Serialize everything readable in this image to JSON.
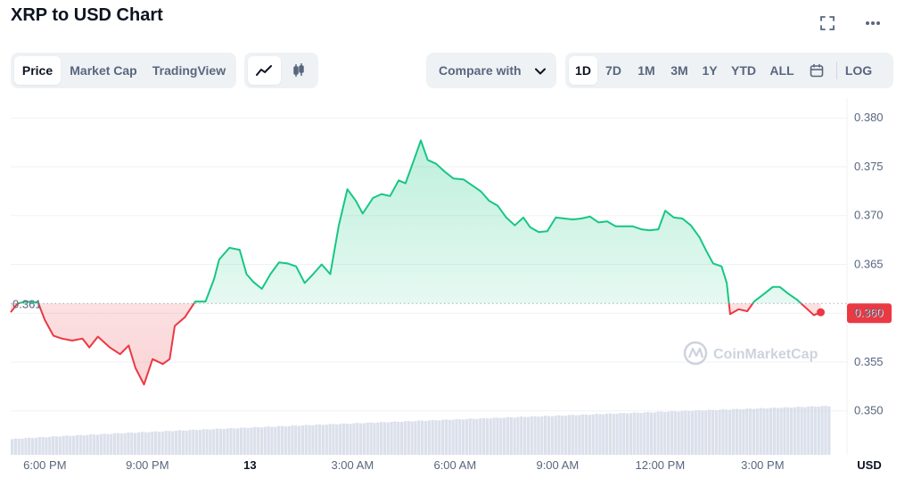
{
  "header": {
    "title": "XRP to USD Chart"
  },
  "tabs": [
    {
      "label": "Price",
      "active": true
    },
    {
      "label": "Market Cap",
      "active": false
    },
    {
      "label": "TradingView",
      "active": false
    }
  ],
  "chart_type_toggle": {
    "icons": [
      "line-chart-icon",
      "candlestick-icon"
    ],
    "active": "line-chart-icon"
  },
  "compare": {
    "label": "Compare with"
  },
  "ranges": [
    {
      "label": "1D",
      "active": true
    },
    {
      "label": "7D",
      "active": false
    },
    {
      "label": "1M",
      "active": false
    },
    {
      "label": "3M",
      "active": false
    },
    {
      "label": "1Y",
      "active": false
    },
    {
      "label": "YTD",
      "active": false
    },
    {
      "label": "ALL",
      "active": false
    }
  ],
  "log_label": "LOG",
  "watermark": "CoinMarketCap",
  "colors": {
    "up": "#16c784",
    "down": "#ea3943",
    "volume": "#cfd6e4",
    "grid": "#eff2f5"
  },
  "chart_data": {
    "type": "line",
    "currency": "USD",
    "x_unit": "hours since 17:00",
    "xticks": [
      {
        "x": 1,
        "label": "6:00 PM",
        "bold": false
      },
      {
        "x": 4,
        "label": "9:00 PM",
        "bold": false
      },
      {
        "x": 7,
        "label": "13",
        "bold": true
      },
      {
        "x": 10,
        "label": "3:00 AM",
        "bold": false
      },
      {
        "x": 13,
        "label": "6:00 AM",
        "bold": false
      },
      {
        "x": 16,
        "label": "9:00 AM",
        "bold": false
      },
      {
        "x": 19,
        "label": "12:00 PM",
        "bold": false
      },
      {
        "x": 22,
        "label": "3:00 PM",
        "bold": false
      }
    ],
    "yticks": [
      0.35,
      0.355,
      0.36,
      0.365,
      0.37,
      0.375,
      0.38
    ],
    "ylim": [
      0.3455,
      0.3813
    ],
    "xlim": [
      0.0,
      24.0
    ],
    "reference_price": 0.361,
    "reference_label": "0.361",
    "current_price": 0.36,
    "current_label": "0.360",
    "price": [
      [
        0.0,
        0.3601
      ],
      [
        0.2,
        0.361
      ],
      [
        0.45,
        0.3612
      ],
      [
        0.8,
        0.3611
      ],
      [
        1.0,
        0.3593
      ],
      [
        1.25,
        0.3577
      ],
      [
        1.5,
        0.3574
      ],
      [
        1.8,
        0.3572
      ],
      [
        2.1,
        0.3574
      ],
      [
        2.3,
        0.3565
      ],
      [
        2.55,
        0.3576
      ],
      [
        2.9,
        0.3565
      ],
      [
        3.2,
        0.3558
      ],
      [
        3.45,
        0.3567
      ],
      [
        3.65,
        0.3544
      ],
      [
        3.9,
        0.3527
      ],
      [
        4.15,
        0.3553
      ],
      [
        4.45,
        0.3548
      ],
      [
        4.65,
        0.3553
      ],
      [
        4.8,
        0.3587
      ],
      [
        5.1,
        0.3596
      ],
      [
        5.4,
        0.3612
      ],
      [
        5.7,
        0.3612
      ],
      [
        5.95,
        0.3635
      ],
      [
        6.1,
        0.3655
      ],
      [
        6.4,
        0.3667
      ],
      [
        6.7,
        0.3665
      ],
      [
        6.9,
        0.364
      ],
      [
        7.1,
        0.3632
      ],
      [
        7.35,
        0.3625
      ],
      [
        7.6,
        0.364
      ],
      [
        7.85,
        0.3652
      ],
      [
        8.1,
        0.3651
      ],
      [
        8.35,
        0.3648
      ],
      [
        8.6,
        0.3631
      ],
      [
        8.85,
        0.364
      ],
      [
        9.1,
        0.365
      ],
      [
        9.35,
        0.364
      ],
      [
        9.6,
        0.369
      ],
      [
        9.85,
        0.3727
      ],
      [
        10.1,
        0.3715
      ],
      [
        10.3,
        0.3702
      ],
      [
        10.6,
        0.3718
      ],
      [
        10.85,
        0.3722
      ],
      [
        11.1,
        0.372
      ],
      [
        11.35,
        0.3736
      ],
      [
        11.55,
        0.3733
      ],
      [
        11.8,
        0.3757
      ],
      [
        12.0,
        0.3777
      ],
      [
        12.2,
        0.3757
      ],
      [
        12.45,
        0.3753
      ],
      [
        12.7,
        0.3745
      ],
      [
        12.95,
        0.3738
      ],
      [
        13.25,
        0.3737
      ],
      [
        13.5,
        0.3731
      ],
      [
        13.75,
        0.3725
      ],
      [
        14.0,
        0.3715
      ],
      [
        14.25,
        0.371
      ],
      [
        14.5,
        0.3698
      ],
      [
        14.75,
        0.369
      ],
      [
        15.0,
        0.3698
      ],
      [
        15.2,
        0.3688
      ],
      [
        15.45,
        0.3683
      ],
      [
        15.7,
        0.3684
      ],
      [
        15.95,
        0.3698
      ],
      [
        16.2,
        0.3697
      ],
      [
        16.45,
        0.3696
      ],
      [
        16.7,
        0.3697
      ],
      [
        16.95,
        0.3699
      ],
      [
        17.2,
        0.3693
      ],
      [
        17.45,
        0.3694
      ],
      [
        17.7,
        0.3689
      ],
      [
        17.95,
        0.3689
      ],
      [
        18.2,
        0.3689
      ],
      [
        18.45,
        0.3686
      ],
      [
        18.7,
        0.3685
      ],
      [
        18.95,
        0.3686
      ],
      [
        19.15,
        0.3705
      ],
      [
        19.4,
        0.3698
      ],
      [
        19.65,
        0.3697
      ],
      [
        19.9,
        0.369
      ],
      [
        20.15,
        0.3678
      ],
      [
        20.35,
        0.3664
      ],
      [
        20.55,
        0.3651
      ],
      [
        20.8,
        0.3648
      ],
      [
        20.95,
        0.3631
      ],
      [
        21.05,
        0.3599
      ],
      [
        21.3,
        0.3604
      ],
      [
        21.55,
        0.3602
      ],
      [
        21.75,
        0.3612
      ],
      [
        22.05,
        0.362
      ],
      [
        22.3,
        0.3627
      ],
      [
        22.5,
        0.3627
      ],
      [
        22.75,
        0.362
      ],
      [
        23.0,
        0.3614
      ],
      [
        23.25,
        0.3606
      ],
      [
        23.5,
        0.3598
      ],
      [
        23.7,
        0.3601
      ]
    ],
    "volume": {
      "start": 0.3471,
      "end": 0.3505,
      "bars": 240
    }
  }
}
